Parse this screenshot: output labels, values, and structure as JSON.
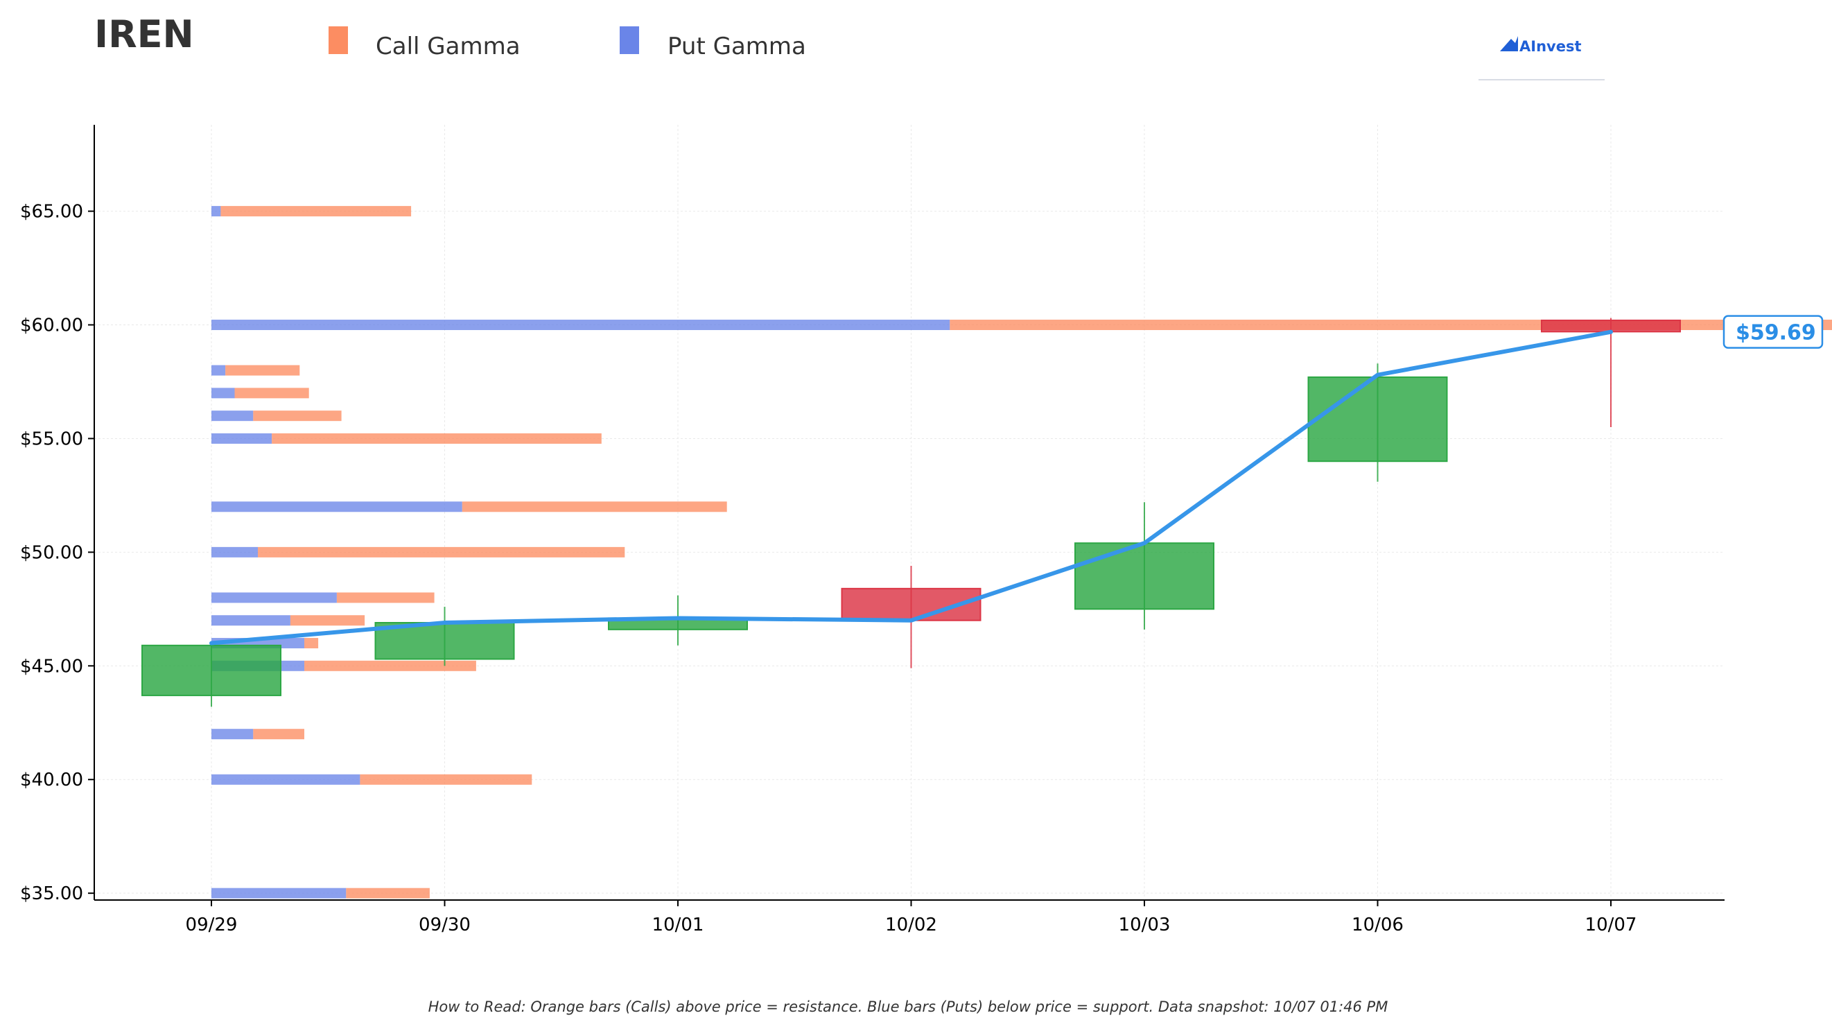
{
  "ticker": "IREN",
  "logo": {
    "text": "AInvest"
  },
  "legend": {
    "call_label": "Call Gamma",
    "put_label": "Put Gamma",
    "call_color": "#fc8d62",
    "put_color": "#6a85e8"
  },
  "footer": "How to Read: Orange bars (Calls) above price = resistance. Blue bars (Puts) below price = support. Data snapshot: 10/07 01:46 PM",
  "chart_data": {
    "type": "candlestick",
    "ylim": [
      34.7,
      68.8
    ],
    "grid": true,
    "legend_position": "top-left",
    "y_ticks": [
      {
        "value": 35,
        "label": "$35.00"
      },
      {
        "value": 40,
        "label": "$40.00"
      },
      {
        "value": 45,
        "label": "$45.00"
      },
      {
        "value": 50,
        "label": "$50.00"
      },
      {
        "value": 55,
        "label": "$55.00"
      },
      {
        "value": 60,
        "label": "$60.00"
      },
      {
        "value": 65,
        "label": "$65.00"
      }
    ],
    "categories": [
      "09/29",
      "09/30",
      "10/01",
      "10/02",
      "10/03",
      "10/06",
      "10/07"
    ],
    "candles": [
      {
        "date": "09/29",
        "open": 43.7,
        "high": 45.9,
        "low": 43.2,
        "close": 45.9
      },
      {
        "date": "09/30",
        "open": 45.3,
        "high": 47.6,
        "low": 45.0,
        "close": 46.9
      },
      {
        "date": "10/01",
        "open": 46.6,
        "high": 48.1,
        "low": 45.9,
        "close": 47.1
      },
      {
        "date": "10/02",
        "open": 48.4,
        "high": 49.4,
        "low": 44.9,
        "close": 47.0
      },
      {
        "date": "10/03",
        "open": 47.5,
        "high": 52.2,
        "low": 46.6,
        "close": 50.4
      },
      {
        "date": "10/06",
        "open": 54.0,
        "high": 58.3,
        "low": 53.1,
        "close": 57.7
      },
      {
        "date": "10/07",
        "open": 60.2,
        "high": 60.3,
        "low": 55.5,
        "close": 59.7
      }
    ],
    "close_line": [
      46.0,
      46.9,
      47.1,
      47.0,
      50.4,
      57.8,
      59.69
    ],
    "gamma_bars": [
      {
        "strike": 35,
        "put": 0.29,
        "call": 0.18
      },
      {
        "strike": 40,
        "put": 0.32,
        "call": 0.37
      },
      {
        "strike": 42,
        "put": 0.09,
        "call": 0.11
      },
      {
        "strike": 45,
        "put": 0.2,
        "call": 0.37
      },
      {
        "strike": 46,
        "put": 0.2,
        "call": 0.03
      },
      {
        "strike": 47,
        "put": 0.17,
        "call": 0.16
      },
      {
        "strike": 48,
        "put": 0.27,
        "call": 0.21
      },
      {
        "strike": 50,
        "put": 0.1,
        "call": 0.79
      },
      {
        "strike": 52,
        "put": 0.54,
        "call": 0.57
      },
      {
        "strike": 55,
        "put": 0.13,
        "call": 0.71
      },
      {
        "strike": 56,
        "put": 0.09,
        "call": 0.19
      },
      {
        "strike": 57,
        "put": 0.05,
        "call": 0.16
      },
      {
        "strike": 58,
        "put": 0.03,
        "call": 0.16
      },
      {
        "strike": 60,
        "put": 1.59,
        "call": 1.92
      },
      {
        "strike": 65,
        "put": 0.02,
        "call": 0.41
      }
    ],
    "current_price_label": "$59.69",
    "current_price": 59.69
  }
}
